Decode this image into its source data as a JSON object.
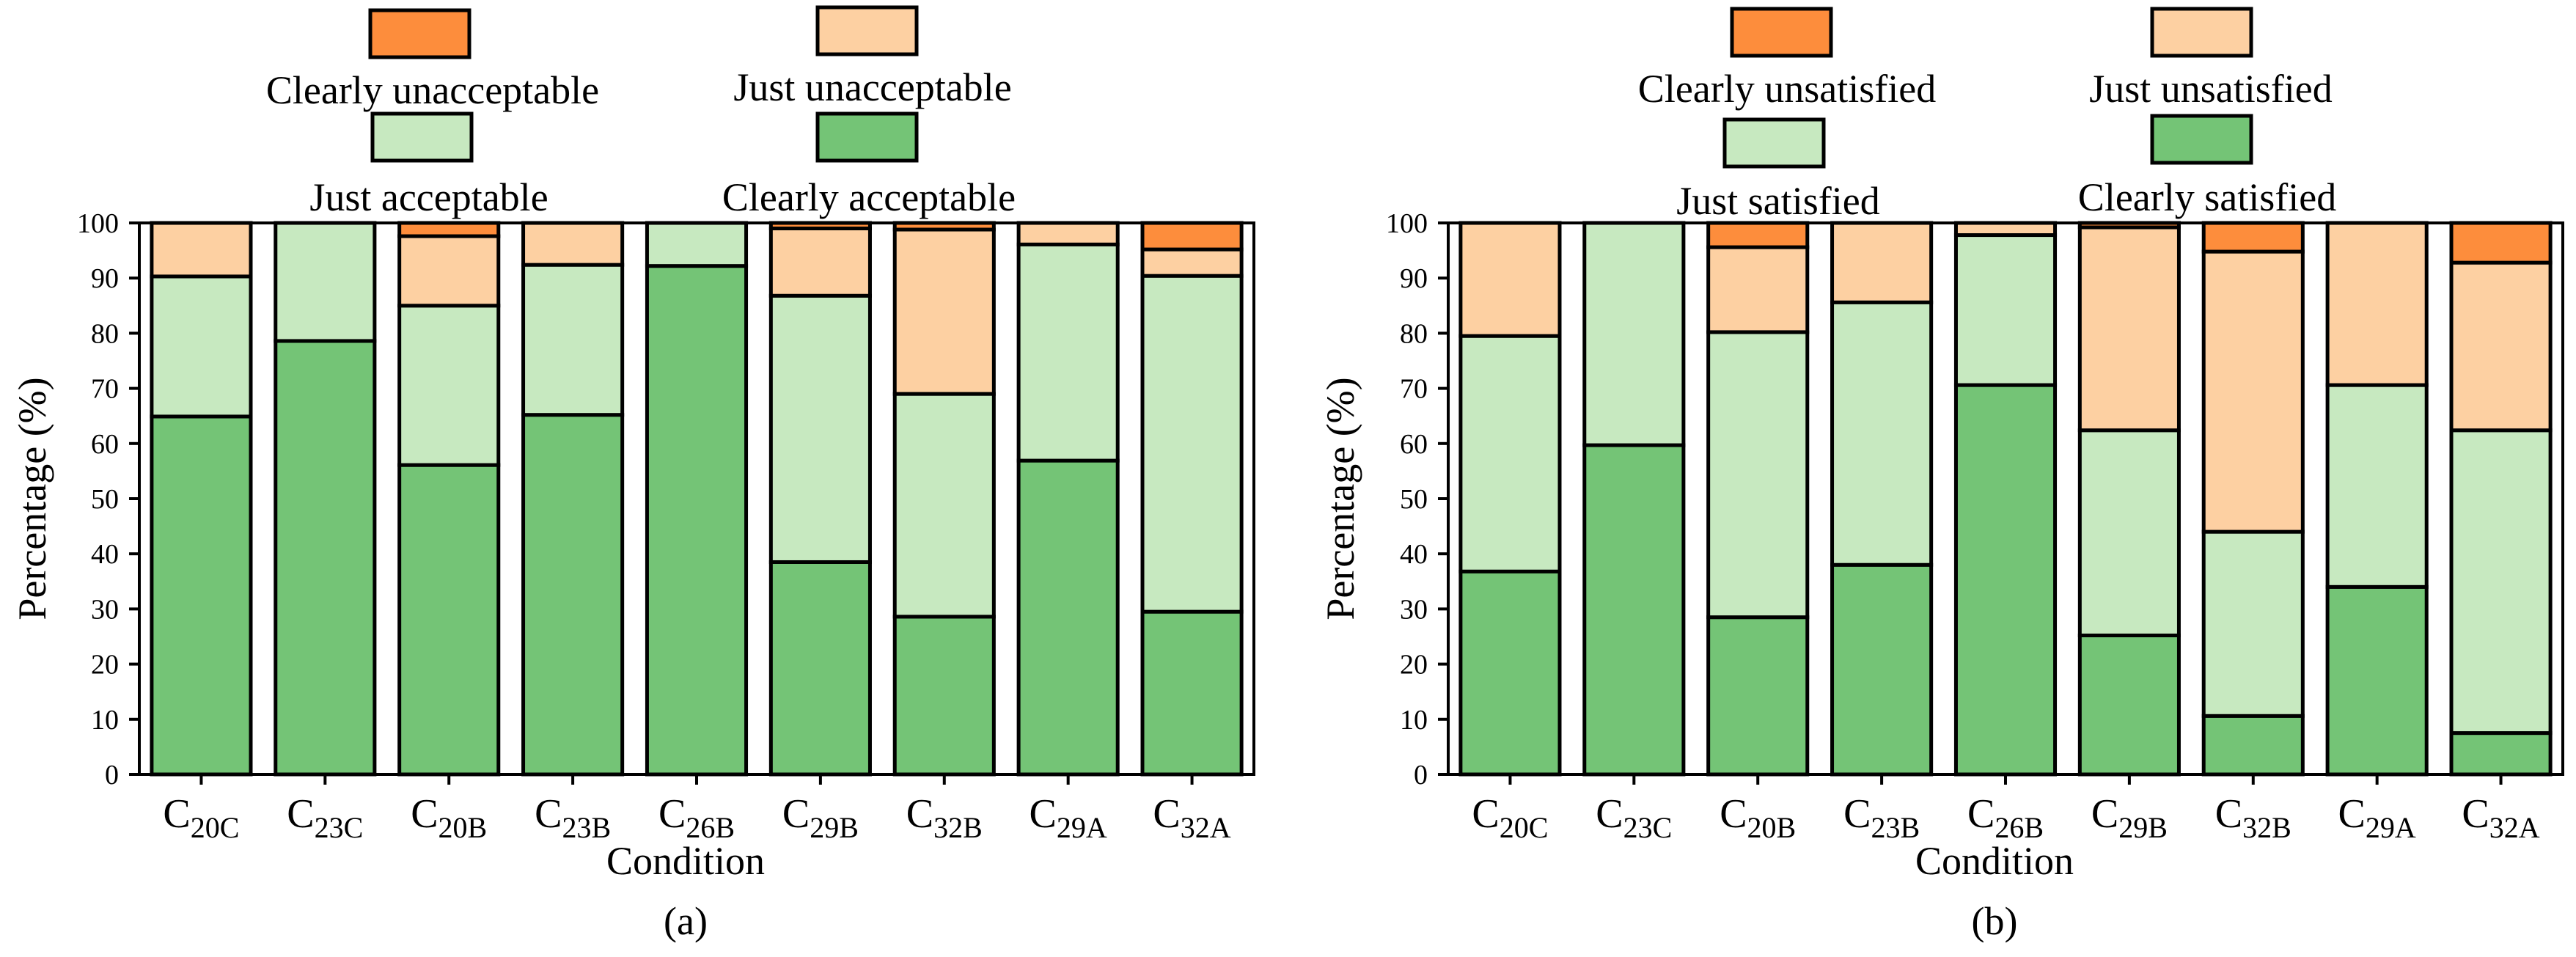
{
  "colors": {
    "clearly_neg": "#fd8d3c",
    "just_neg": "#fdd0a2",
    "just_pos": "#c7e9c0",
    "clearly_pos": "#74c476",
    "edge": "#000000"
  },
  "chart_data": [
    {
      "panel_label": "(a)",
      "type": "bar",
      "stacked": true,
      "xlabel": "Condition",
      "ylabel": "Percentage (%)",
      "ylim": [
        0,
        100
      ],
      "yticks": [
        0,
        10,
        20,
        30,
        40,
        50,
        60,
        70,
        80,
        90,
        100
      ],
      "categories": [
        {
          "base": "C",
          "sub": "20C"
        },
        {
          "base": "C",
          "sub": "23C"
        },
        {
          "base": "C",
          "sub": "20B"
        },
        {
          "base": "C",
          "sub": "23B"
        },
        {
          "base": "C",
          "sub": "26B"
        },
        {
          "base": "C",
          "sub": "29B"
        },
        {
          "base": "C",
          "sub": "32B"
        },
        {
          "base": "C",
          "sub": "29A"
        },
        {
          "base": "C",
          "sub": "32A"
        }
      ],
      "series": [
        {
          "name": "Clearly acceptable",
          "key": "clearly_pos",
          "values": [
            64.9,
            78.6,
            56.1,
            65.2,
            92.2,
            38.5,
            28.6,
            56.9,
            29.5
          ]
        },
        {
          "name": "Just acceptable",
          "key": "just_pos",
          "values": [
            25.4,
            21.4,
            28.9,
            27.2,
            7.8,
            48.3,
            40.4,
            39.2,
            60.9
          ]
        },
        {
          "name": "Just unacceptable",
          "key": "just_neg",
          "values": [
            9.7,
            0.0,
            12.6,
            7.6,
            0.0,
            12.2,
            29.8,
            3.9,
            4.8
          ]
        },
        {
          "name": "Clearly unacceptable",
          "key": "clearly_neg",
          "values": [
            0.0,
            0.0,
            2.4,
            0.0,
            0.0,
            1.0,
            1.2,
            0.0,
            4.8
          ]
        }
      ],
      "legend": [
        {
          "name": "Clearly unacceptable",
          "key": "clearly_neg"
        },
        {
          "name": "Just unacceptable",
          "key": "just_neg"
        },
        {
          "name": "Just acceptable",
          "key": "just_pos"
        },
        {
          "name": "Clearly acceptable",
          "key": "clearly_pos"
        }
      ],
      "legend_placement": "top"
    },
    {
      "panel_label": "(b)",
      "type": "bar",
      "stacked": true,
      "xlabel": "Condition",
      "ylabel": "Percentage (%)",
      "ylim": [
        0,
        100
      ],
      "yticks": [
        0,
        10,
        20,
        30,
        40,
        50,
        60,
        70,
        80,
        90,
        100
      ],
      "categories": [
        {
          "base": "C",
          "sub": "20C"
        },
        {
          "base": "C",
          "sub": "23C"
        },
        {
          "base": "C",
          "sub": "20B"
        },
        {
          "base": "C",
          "sub": "23B"
        },
        {
          "base": "C",
          "sub": "26B"
        },
        {
          "base": "C",
          "sub": "29B"
        },
        {
          "base": "C",
          "sub": "32B"
        },
        {
          "base": "C",
          "sub": "29A"
        },
        {
          "base": "C",
          "sub": "32A"
        }
      ],
      "series": [
        {
          "name": "Clearly satisfied",
          "key": "clearly_pos",
          "values": [
            36.8,
            59.7,
            28.5,
            38.0,
            70.6,
            25.2,
            10.6,
            34.0,
            7.5
          ]
        },
        {
          "name": "Just satisfied",
          "key": "just_pos",
          "values": [
            42.7,
            40.3,
            51.7,
            47.6,
            27.2,
            37.2,
            33.4,
            36.6,
            54.9
          ]
        },
        {
          "name": "Just unsatisfied",
          "key": "just_neg",
          "values": [
            20.5,
            0.0,
            15.4,
            14.4,
            2.2,
            36.8,
            50.8,
            29.4,
            30.4
          ]
        },
        {
          "name": "Clearly unsatisfied",
          "key": "clearly_neg",
          "values": [
            0.0,
            0.0,
            4.4,
            0.0,
            0.0,
            0.8,
            5.2,
            0.0,
            7.2
          ]
        }
      ],
      "legend": [
        {
          "name": "Clearly unsatisfied",
          "key": "clearly_neg"
        },
        {
          "name": "Just unsatisfied",
          "key": "just_neg"
        },
        {
          "name": "Just satisfied",
          "key": "just_pos"
        },
        {
          "name": "Clearly satisfied",
          "key": "clearly_pos"
        }
      ],
      "legend_placement": "top"
    }
  ]
}
